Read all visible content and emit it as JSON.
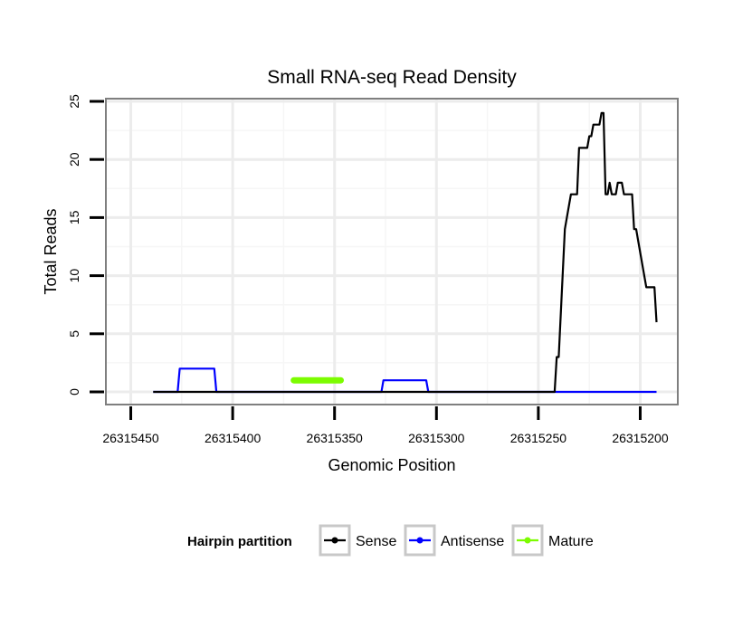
{
  "chart_data": {
    "type": "line",
    "title": "Small RNA-seq Read Density",
    "xlabel": "Genomic Position",
    "ylabel": "Total Reads",
    "xlim": [
      26315460,
      26315190
    ],
    "ylim": [
      0,
      25
    ],
    "x_reversed": true,
    "x_ticks": [
      26315450,
      26315400,
      26315350,
      26315300,
      26315250,
      26315200
    ],
    "x_tick_labels": [
      "26315450",
      "26315400",
      "26315350",
      "26315300",
      "26315250",
      "26315200"
    ],
    "y_ticks": [
      0,
      5,
      10,
      15,
      20,
      25
    ],
    "y_tick_labels": [
      "0",
      "5",
      "10",
      "15",
      "20",
      "25"
    ],
    "grid": true,
    "legend": {
      "title": "Hairpin partition",
      "placement": "bottom",
      "entries": [
        "Sense",
        "Antisense",
        "Mature"
      ]
    },
    "series": [
      {
        "name": "Sense",
        "color": "#000000",
        "points": [
          [
            26315439,
            0
          ],
          [
            26315242,
            0
          ],
          [
            26315241,
            3
          ],
          [
            26315240,
            3
          ],
          [
            26315237,
            14
          ],
          [
            26315236,
            15
          ],
          [
            26315234,
            17
          ],
          [
            26315231,
            17
          ],
          [
            26315230,
            21
          ],
          [
            26315226,
            21
          ],
          [
            26315225,
            22
          ],
          [
            26315224,
            22
          ],
          [
            26315223,
            23
          ],
          [
            26315220,
            23
          ],
          [
            26315219,
            24
          ],
          [
            26315218,
            24
          ],
          [
            26315217,
            17
          ],
          [
            26315216,
            17
          ],
          [
            26315215,
            18
          ],
          [
            26315214,
            17
          ],
          [
            26315212,
            17
          ],
          [
            26315211,
            18
          ],
          [
            26315209,
            18
          ],
          [
            26315208,
            17
          ],
          [
            26315204,
            17
          ],
          [
            26315203,
            14
          ],
          [
            26315202,
            14
          ],
          [
            26315201,
            13
          ],
          [
            26315199,
            11
          ],
          [
            26315197,
            9
          ],
          [
            26315193,
            9
          ],
          [
            26315192,
            6
          ]
        ]
      },
      {
        "name": "Antisense",
        "color": "#0000ff",
        "points": [
          [
            26315439,
            0
          ],
          [
            26315427,
            0
          ],
          [
            26315426,
            2
          ],
          [
            26315409,
            2
          ],
          [
            26315408,
            0
          ],
          [
            26315327,
            0
          ],
          [
            26315326,
            1
          ],
          [
            26315305,
            1
          ],
          [
            26315304,
            0
          ],
          [
            26315192,
            0
          ]
        ]
      },
      {
        "name": "Mature",
        "color": "#7cfc00",
        "points": [
          [
            26315370,
            1
          ],
          [
            26315347,
            1
          ]
        ]
      }
    ]
  }
}
